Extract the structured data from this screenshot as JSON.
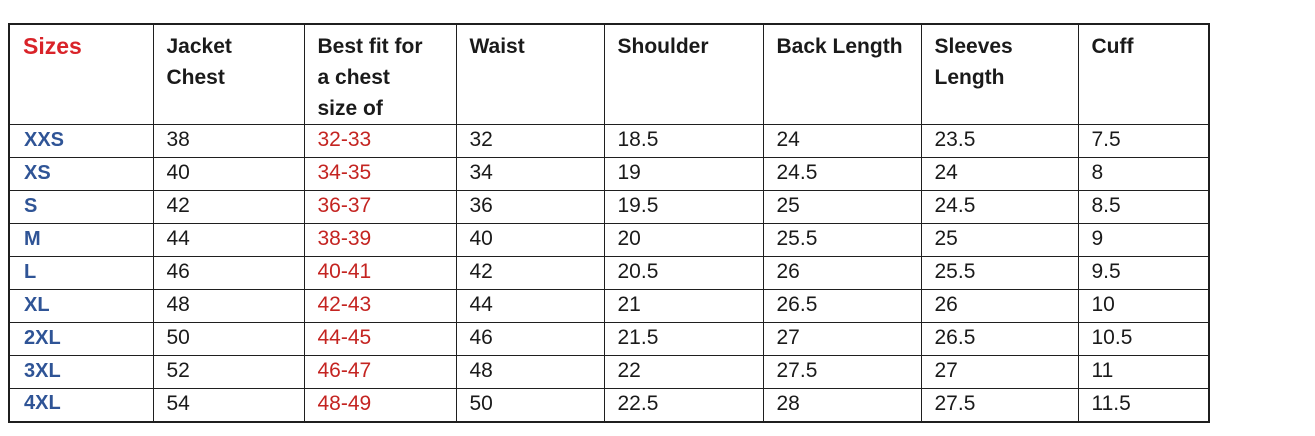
{
  "colors": {
    "sizes_header_red": "#d92329",
    "best_fit_red": "#c42421",
    "size_label_blue": "#2f5496",
    "text_black": "#1a1a1a",
    "border_black": "#1f1f1f"
  },
  "table": {
    "sizes_header": "Sizes",
    "columns": [
      "Jacket\nChest",
      "Best fit for\na chest\nsize of",
      "Waist",
      "Shoulder",
      "Back Length",
      "Sleeves\nLength",
      "Cuff"
    ],
    "rows": [
      [
        "XXS",
        "38",
        "32-33",
        "32",
        "18.5",
        "24",
        "23.5",
        "7.5"
      ],
      [
        "XS",
        "40",
        "34-35",
        "34",
        "19",
        "24.5",
        "24",
        "8"
      ],
      [
        "S",
        "42",
        "36-37",
        "36",
        "19.5",
        "25",
        "24.5",
        "8.5"
      ],
      [
        "M",
        "44",
        "38-39",
        "40",
        "20",
        "25.5",
        "25",
        "9"
      ],
      [
        "L",
        "46",
        "40-41",
        "42",
        "20.5",
        "26",
        "25.5",
        "9.5"
      ],
      [
        "XL",
        "48",
        "42-43",
        "44",
        "21",
        "26.5",
        "26",
        "10"
      ],
      [
        "2XL",
        "50",
        "44-45",
        "46",
        "21.5",
        "27",
        "26.5",
        "10.5"
      ],
      [
        "3XL",
        "52",
        "46-47",
        "48",
        "22",
        "27.5",
        "27",
        "11"
      ],
      [
        "4XL",
        "54",
        "48-49",
        "50",
        "22.5",
        "28",
        "27.5",
        "11.5"
      ]
    ]
  }
}
